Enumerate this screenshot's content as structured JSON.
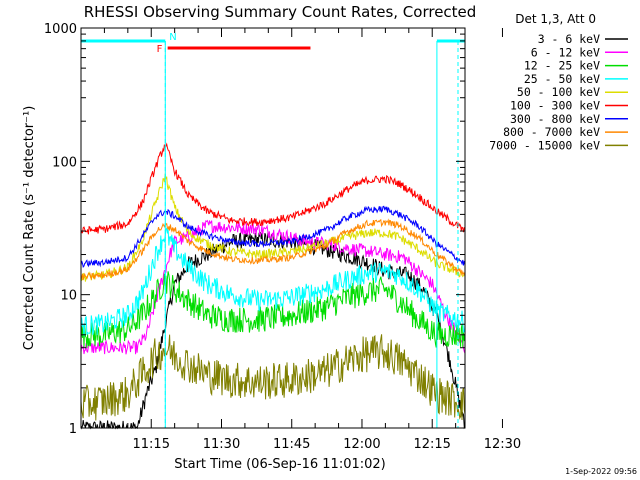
{
  "chart_data": {
    "type": "line",
    "title": "RHESSI Observing Summary Count Rates, Corrected",
    "xlabel": "Start Time (06-Sep-16 11:01:02)",
    "ylabel": "Corrected Count Rate (s⁻¹ detector⁻¹)",
    "y_scale": "log",
    "ylim": [
      1,
      1000
    ],
    "y_ticks": [
      {
        "value": 1,
        "label": "1"
      },
      {
        "value": 10,
        "label": "10"
      },
      {
        "value": 100,
        "label": "100"
      },
      {
        "value": 1000,
        "label": "1000"
      }
    ],
    "x_unit": "minutes after 11:00",
    "xlim": [
      0,
      82
    ],
    "x_ticks": [
      {
        "value": 15,
        "label": "11:15"
      },
      {
        "value": 30,
        "label": "11:30"
      },
      {
        "value": 45,
        "label": "11:45"
      },
      {
        "value": 60,
        "label": "12:00"
      },
      {
        "value": 75,
        "label": "12:15"
      },
      {
        "value": 90,
        "label": "12:30"
      }
    ],
    "legend_header": "Det 1,3, Att 0",
    "legend_position": "right",
    "series": [
      {
        "name": "3 - 6 keV",
        "color": "#000000",
        "points": [
          [
            12,
            1
          ],
          [
            14,
            1.8
          ],
          [
            16,
            2.8
          ],
          [
            18,
            6
          ],
          [
            20,
            12
          ],
          [
            23,
            17
          ],
          [
            27,
            20
          ],
          [
            32,
            25
          ],
          [
            38,
            26
          ],
          [
            45,
            25
          ],
          [
            52,
            22
          ],
          [
            58,
            19
          ],
          [
            62,
            17
          ],
          [
            65,
            15
          ],
          [
            70,
            14
          ],
          [
            73,
            11
          ],
          [
            76,
            7
          ],
          [
            79,
            3
          ],
          [
            82,
            1
          ]
        ]
      },
      {
        "name": "6 - 12 keV",
        "color": "#ff00ff",
        "points": [
          [
            12,
            4
          ],
          [
            14,
            5
          ],
          [
            17,
            12
          ],
          [
            19,
            20
          ],
          [
            20,
            25
          ],
          [
            23,
            27
          ],
          [
            27,
            33
          ],
          [
            32,
            32
          ],
          [
            38,
            31
          ],
          [
            43,
            28
          ],
          [
            48,
            25
          ],
          [
            53,
            24
          ],
          [
            58,
            22
          ],
          [
            62,
            21
          ],
          [
            65,
            20
          ],
          [
            69,
            19
          ],
          [
            72,
            15
          ],
          [
            75,
            12
          ],
          [
            78,
            7
          ],
          [
            82,
            4
          ]
        ]
      },
      {
        "name": "12 - 25 keV",
        "color": "#00dd00",
        "points": [
          [
            0,
            5
          ],
          [
            5,
            5
          ],
          [
            10,
            5.5
          ],
          [
            13,
            7
          ],
          [
            16,
            10
          ],
          [
            18,
            13
          ],
          [
            20,
            11
          ],
          [
            23,
            9
          ],
          [
            27,
            7
          ],
          [
            32,
            6.5
          ],
          [
            38,
            6.5
          ],
          [
            45,
            7
          ],
          [
            52,
            8
          ],
          [
            57,
            9.5
          ],
          [
            61,
            10.5
          ],
          [
            65,
            11
          ],
          [
            68,
            9
          ],
          [
            72,
            6.5
          ],
          [
            76,
            5
          ],
          [
            82,
            5
          ]
        ]
      },
      {
        "name": "25 - 50 keV",
        "color": "#00ffff",
        "points": [
          [
            0,
            5.8
          ],
          [
            5,
            6
          ],
          [
            10,
            7
          ],
          [
            13,
            10
          ],
          [
            16,
            20
          ],
          [
            18,
            29
          ],
          [
            20,
            22
          ],
          [
            23,
            16
          ],
          [
            27,
            12
          ],
          [
            32,
            10
          ],
          [
            38,
            9
          ],
          [
            45,
            9.5
          ],
          [
            52,
            11
          ],
          [
            57,
            13
          ],
          [
            61,
            14.5
          ],
          [
            65,
            15
          ],
          [
            68,
            14
          ],
          [
            72,
            11
          ],
          [
            76,
            7.5
          ],
          [
            82,
            6.2
          ]
        ]
      },
      {
        "name": "50 - 100 keV",
        "color": "#dddd00",
        "points": [
          [
            0,
            13.5
          ],
          [
            5,
            14
          ],
          [
            10,
            16
          ],
          [
            13,
            25
          ],
          [
            16,
            50
          ],
          [
            18,
            78
          ],
          [
            20,
            45
          ],
          [
            23,
            29
          ],
          [
            27,
            24
          ],
          [
            32,
            21
          ],
          [
            38,
            20
          ],
          [
            45,
            21
          ],
          [
            52,
            24
          ],
          [
            57,
            27
          ],
          [
            61,
            29
          ],
          [
            65,
            29
          ],
          [
            68,
            27
          ],
          [
            72,
            22
          ],
          [
            76,
            17
          ],
          [
            82,
            14
          ]
        ]
      },
      {
        "name": "100 - 300 keV",
        "color": "#ff0000",
        "points": [
          [
            0,
            30
          ],
          [
            5,
            31
          ],
          [
            10,
            34
          ],
          [
            13,
            48
          ],
          [
            16,
            92
          ],
          [
            18,
            135
          ],
          [
            20,
            85
          ],
          [
            23,
            55
          ],
          [
            27,
            42
          ],
          [
            32,
            36
          ],
          [
            38,
            35
          ],
          [
            45,
            38
          ],
          [
            52,
            48
          ],
          [
            57,
            62
          ],
          [
            61,
            72
          ],
          [
            65,
            74
          ],
          [
            68,
            68
          ],
          [
            72,
            55
          ],
          [
            76,
            42
          ],
          [
            82,
            30
          ]
        ]
      },
      {
        "name": "300 - 800 keV",
        "color": "#0000ff",
        "points": [
          [
            0,
            17
          ],
          [
            5,
            17.5
          ],
          [
            10,
            19
          ],
          [
            13,
            27
          ],
          [
            16,
            39
          ],
          [
            18,
            42
          ],
          [
            20,
            39
          ],
          [
            23,
            32
          ],
          [
            27,
            28
          ],
          [
            32,
            25
          ],
          [
            38,
            24
          ],
          [
            45,
            25
          ],
          [
            52,
            30
          ],
          [
            57,
            38
          ],
          [
            61,
            43
          ],
          [
            65,
            44
          ],
          [
            68,
            40
          ],
          [
            72,
            33
          ],
          [
            76,
            24
          ],
          [
            82,
            17
          ]
        ]
      },
      {
        "name": "800 - 7000 keV",
        "color": "#ff8800",
        "points": [
          [
            0,
            13.5
          ],
          [
            5,
            14
          ],
          [
            10,
            15.5
          ],
          [
            13,
            21
          ],
          [
            16,
            30
          ],
          [
            18,
            33
          ],
          [
            20,
            31
          ],
          [
            23,
            25
          ],
          [
            27,
            21
          ],
          [
            32,
            18.5
          ],
          [
            38,
            18
          ],
          [
            45,
            19
          ],
          [
            52,
            23
          ],
          [
            57,
            30
          ],
          [
            61,
            34
          ],
          [
            65,
            35
          ],
          [
            68,
            33
          ],
          [
            72,
            27
          ],
          [
            76,
            20
          ],
          [
            82,
            14
          ]
        ]
      },
      {
        "name": "7000 - 15000 keV",
        "color": "#808000",
        "points": [
          [
            0,
            1.5
          ],
          [
            5,
            1.6
          ],
          [
            10,
            1.8
          ],
          [
            13,
            2.5
          ],
          [
            16,
            3.5
          ],
          [
            18,
            4
          ],
          [
            20,
            3.5
          ],
          [
            23,
            3
          ],
          [
            27,
            2.5
          ],
          [
            32,
            2.3
          ],
          [
            38,
            2.2
          ],
          [
            45,
            2.3
          ],
          [
            52,
            2.6
          ],
          [
            57,
            3.2
          ],
          [
            61,
            3.6
          ],
          [
            65,
            3.7
          ],
          [
            68,
            3.2
          ],
          [
            72,
            2.5
          ],
          [
            76,
            1.8
          ],
          [
            82,
            1.5
          ]
        ]
      }
    ],
    "annotations": {
      "flags": [
        {
          "label": "N",
          "color": "#00ffff"
        },
        {
          "label": "F",
          "color": "#ff0000"
        }
      ],
      "night_periods": [
        [
          0,
          18
        ],
        [
          76,
          82
        ]
      ],
      "flare_interval": [
        18.5,
        49
      ],
      "vertical_markers": [
        18,
        76
      ],
      "footer": "1-Sep-2022 09:56"
    }
  }
}
